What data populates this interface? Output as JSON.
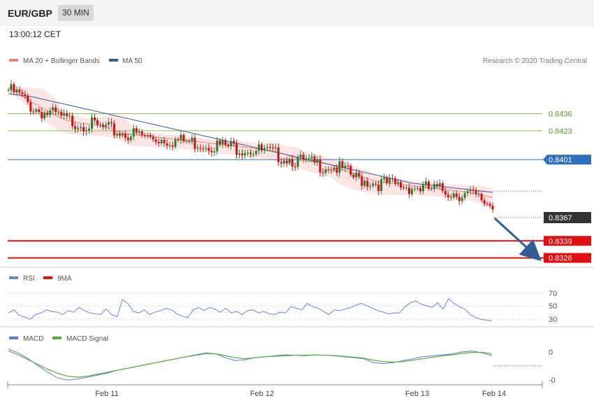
{
  "header": {
    "symbol": "EUR/GBP",
    "timeframe": "30 MIN"
  },
  "timestamp": "13:00:12 CET",
  "credit": "Research © 2020 Trading Central",
  "colors": {
    "bollinger": "#f08080",
    "band_fill": "#fde2e2",
    "ma50": "#3a5a9a",
    "green_level": "#8fbf5a",
    "blue_level": "#2f6fbf",
    "red_level": "#e01010",
    "candle_up": "#2e7d2e",
    "candle_down": "#cc1414",
    "rsi": "#6b84d6",
    "rsi_ma": "#e01010",
    "macd": "#5b7fd6",
    "macd_signal": "#59a83a",
    "current_badge": "#333333",
    "arrow": "#2f5b97"
  },
  "chart_data": [
    {
      "type": "candlestick",
      "name": "price",
      "legend": [
        {
          "label": "MA 20 + Bollinger Bands",
          "color": "#f08080"
        },
        {
          "label": "MA 50",
          "color": "#3a5a9a"
        }
      ],
      "x_ticks": [
        "Feb 11",
        "Feb 12",
        "Feb 13",
        "Feb 14"
      ],
      "ylim": [
        0.8321,
        0.8472
      ],
      "levels": [
        {
          "value": 0.8436,
          "label": "0.8436",
          "kind": "resistance"
        },
        {
          "value": 0.8423,
          "label": "0.8423",
          "kind": "resistance"
        },
        {
          "value": 0.8401,
          "label": "0.8401",
          "kind": "pivot"
        },
        {
          "value": 0.8339,
          "label": "0.8339",
          "kind": "support"
        },
        {
          "value": 0.8326,
          "label": "0.8326",
          "kind": "support"
        }
      ],
      "current": {
        "value": 0.8367,
        "label": "0.8367"
      },
      "close": [
        0.8454,
        0.845,
        0.8441,
        0.8437,
        0.8435,
        0.8431,
        0.8429,
        0.8428,
        0.8425,
        0.8423,
        0.8421,
        0.842,
        0.8418,
        0.8417,
        0.8416,
        0.8415,
        0.8414,
        0.8413,
        0.8412,
        0.8411,
        0.841,
        0.8409,
        0.8407,
        0.8405,
        0.8403,
        0.84,
        0.8398,
        0.8397,
        0.8396,
        0.8393,
        0.8387,
        0.8385,
        0.8383,
        0.8382,
        0.8381,
        0.838,
        0.8379,
        0.8378,
        0.8377,
        0.8375,
        0.8374,
        0.837,
        0.8366
      ],
      "ma20": [
        0.8456,
        0.8451,
        0.8445,
        0.844,
        0.8435,
        0.8431,
        0.8429,
        0.8428,
        0.8427,
        0.8424,
        0.8421,
        0.842,
        0.8419,
        0.8418,
        0.8417,
        0.8416,
        0.8415,
        0.8414,
        0.8413,
        0.8412,
        0.8411,
        0.841,
        0.8409,
        0.8407,
        0.8405,
        0.8402,
        0.84,
        0.8399,
        0.8397,
        0.8393,
        0.839,
        0.8387,
        0.8384,
        0.8383,
        0.8382,
        0.8381,
        0.838,
        0.8379,
        0.8378,
        0.8377,
        0.8376,
        0.8374,
        0.8372
      ],
      "band_upper": [
        0.8457,
        0.8456,
        0.8456,
        0.8455,
        0.8448,
        0.8437,
        0.8434,
        0.8432,
        0.8433,
        0.8436,
        0.8433,
        0.8424,
        0.8422,
        0.8421,
        0.842,
        0.842,
        0.8418,
        0.8417,
        0.8416,
        0.8415,
        0.8415,
        0.8414,
        0.8413,
        0.8413,
        0.8412,
        0.841,
        0.8406,
        0.8404,
        0.8402,
        0.8399,
        0.8396,
        0.8393,
        0.8388,
        0.8387,
        0.8386,
        0.8385,
        0.8384,
        0.8383,
        0.8382,
        0.8382,
        0.8381,
        0.8381,
        0.8379
      ],
      "band_lower": [
        0.8453,
        0.8447,
        0.8438,
        0.8431,
        0.8425,
        0.8421,
        0.842,
        0.8419,
        0.8419,
        0.8418,
        0.8414,
        0.8411,
        0.8411,
        0.841,
        0.841,
        0.8409,
        0.8408,
        0.8407,
        0.8406,
        0.8405,
        0.8404,
        0.8403,
        0.8402,
        0.84,
        0.8398,
        0.8395,
        0.8392,
        0.839,
        0.8387,
        0.8381,
        0.8378,
        0.8376,
        0.8375,
        0.8374,
        0.8374,
        0.8374,
        0.8373,
        0.8373,
        0.8372,
        0.8371,
        0.837,
        0.8367,
        0.8364
      ],
      "ma50": [
        0.8451,
        0.845,
        0.8449,
        0.8447,
        0.8445,
        0.8443,
        0.8441,
        0.8439,
        0.8437,
        0.8435,
        0.8433,
        0.8431,
        0.8429,
        0.8427,
        0.8425,
        0.8423,
        0.8421,
        0.8419,
        0.8417,
        0.8415,
        0.8413,
        0.8411,
        0.8409,
        0.8407,
        0.8405,
        0.8403,
        0.8401,
        0.8399,
        0.8397,
        0.8395,
        0.8393,
        0.8391,
        0.8389,
        0.8387,
        0.8385,
        0.8383,
        0.8382,
        0.8381,
        0.838,
        0.8379,
        0.8378,
        0.8377,
        0.8376
      ]
    },
    {
      "type": "line",
      "name": "rsi",
      "legend": [
        {
          "label": "RSI",
          "color": "#6b84d6"
        },
        {
          "label": "9MA",
          "color": "#e01010"
        }
      ],
      "y_ticks": [
        "70",
        "50",
        "30"
      ],
      "ylim": [
        20,
        80
      ],
      "values": [
        40,
        44,
        37,
        35,
        32,
        38,
        40,
        44,
        42,
        41,
        38,
        43,
        41,
        47,
        43,
        40,
        39,
        38,
        45,
        38,
        35,
        57,
        52,
        42,
        40,
        44,
        38,
        41,
        43,
        46,
        44,
        39,
        36,
        34,
        44,
        47,
        43,
        47,
        45,
        41,
        46,
        40,
        42,
        38,
        43,
        44,
        40,
        42,
        39,
        38,
        41,
        40,
        48,
        46,
        44,
        52,
        48,
        46,
        42,
        38,
        44,
        43,
        45,
        47,
        50,
        52,
        49,
        46,
        43,
        41,
        39,
        40,
        40,
        48,
        53,
        55,
        51,
        49,
        47,
        53,
        45,
        58,
        52,
        48,
        45,
        38,
        34,
        32,
        31,
        30
      ]
    },
    {
      "type": "line",
      "name": "macd",
      "legend": [
        {
          "label": "MACD",
          "color": "#5b7fd6"
        },
        {
          "label": "MACD Signal",
          "color": "#59a83a"
        }
      ],
      "y_ticks": [
        "0",
        "-0"
      ],
      "macd": [
        0.2,
        -0.2,
        -0.8,
        -1.5,
        -2.2,
        -2.8,
        -3.0,
        -2.9,
        -2.7,
        -2.5,
        -2.3,
        -2.0,
        -1.8,
        -1.6,
        -1.4,
        -1.2,
        -1.0,
        -0.8,
        -0.6,
        -0.4,
        -0.2,
        -0.3,
        -0.7,
        -1.0,
        -0.9,
        -0.7,
        -0.6,
        -0.5,
        -0.4,
        -0.45,
        -0.5,
        -0.4,
        -0.45,
        -0.5,
        -0.6,
        -0.7,
        -0.8,
        -1.2,
        -1.3,
        -1.2,
        -1.0,
        -0.8,
        -0.6,
        -0.5,
        -0.4,
        -0.3,
        -0.1,
        0.0,
        -0.2,
        -0.5
      ],
      "signal": [
        0.0,
        -0.4,
        -0.9,
        -1.4,
        -1.9,
        -2.3,
        -2.6,
        -2.7,
        -2.6,
        -2.4,
        -2.2,
        -2.0,
        -1.8,
        -1.6,
        -1.4,
        -1.2,
        -1.0,
        -0.8,
        -0.6,
        -0.45,
        -0.3,
        -0.3,
        -0.5,
        -0.7,
        -0.8,
        -0.7,
        -0.6,
        -0.55,
        -0.5,
        -0.45,
        -0.45,
        -0.42,
        -0.44,
        -0.48,
        -0.55,
        -0.65,
        -0.75,
        -0.95,
        -1.1,
        -1.15,
        -1.1,
        -0.95,
        -0.8,
        -0.65,
        -0.5,
        -0.4,
        -0.25,
        -0.15,
        -0.15,
        -0.3
      ]
    }
  ]
}
